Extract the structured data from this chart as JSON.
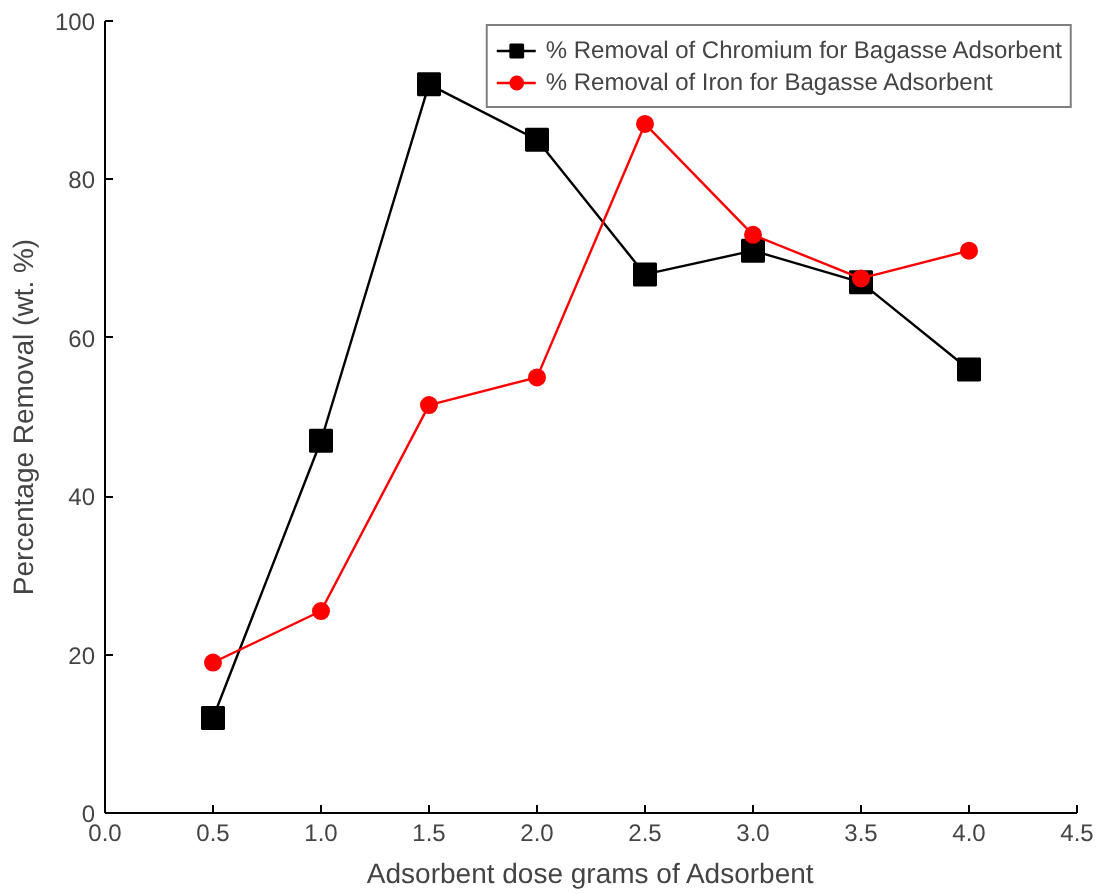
{
  "chart_data": {
    "type": "line",
    "xlabel": "Adsorbent dose grams of Adsorbent",
    "ylabel": "Percentage Removal (wt. %)",
    "x": [
      0.5,
      1.0,
      1.5,
      2.0,
      2.5,
      3.0,
      3.5,
      4.0
    ],
    "series": [
      {
        "name": "% Removal of Chromium for Bagasse Adsorbent",
        "color": "#000000",
        "marker": "square",
        "values": [
          12,
          47,
          92,
          85,
          68,
          71,
          67,
          56
        ]
      },
      {
        "name": "% Removal of Iron for Bagasse Adsorbent",
        "color": "#ff0000",
        "marker": "circle",
        "values": [
          19,
          25.5,
          51.5,
          55,
          87,
          73,
          67.5,
          71
        ]
      }
    ],
    "xlim": [
      0,
      4.5
    ],
    "ylim": [
      0,
      100
    ],
    "xticks": [
      {
        "value": 0,
        "label": "0.0"
      },
      0.5,
      {
        "value": 1,
        "label": "1.0"
      },
      1.5,
      {
        "value": 2,
        "label": "2.0"
      },
      2.5,
      {
        "value": 3,
        "label": "3.0"
      },
      3.5,
      {
        "value": 4,
        "label": "4.0"
      },
      4.5
    ],
    "yticks": [
      0,
      20,
      40,
      60,
      80,
      100
    ],
    "grid": false,
    "legend": "top right",
    "line_style": "solid"
  }
}
